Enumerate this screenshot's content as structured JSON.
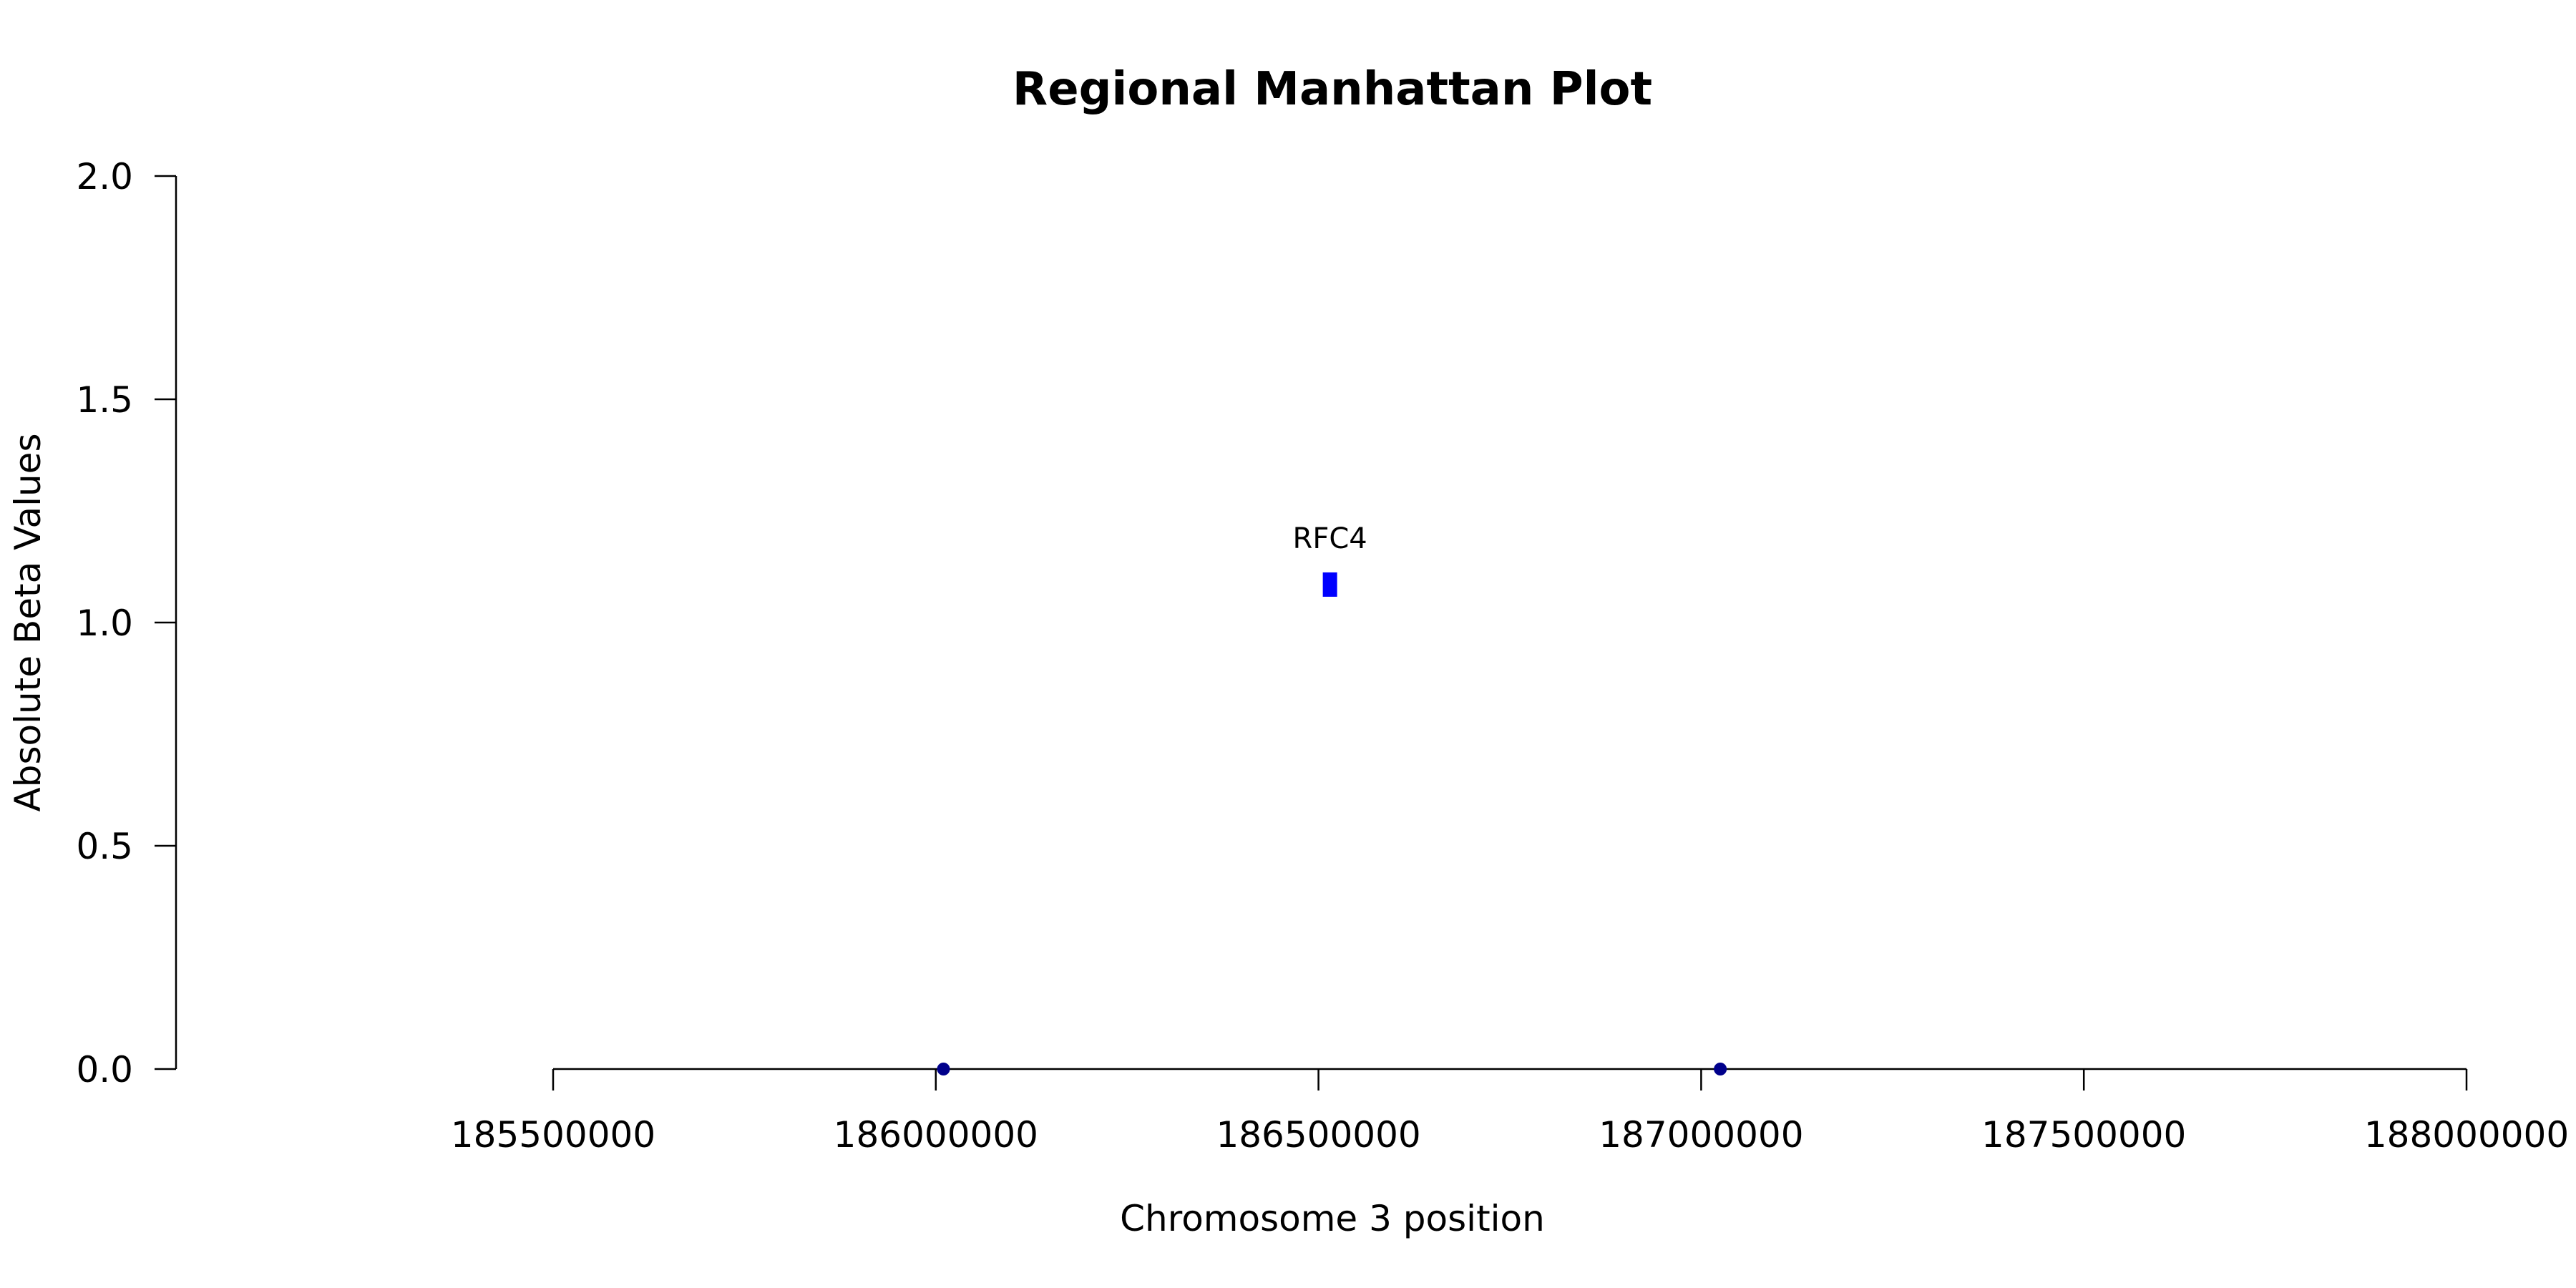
{
  "chart_data": {
    "type": "scatter",
    "title": "Regional Manhattan Plot",
    "xlabel": "Chromosome 3 position",
    "ylabel": "Absolute Beta Values",
    "xlim": [
      185500000,
      188000000
    ],
    "ylim": [
      0,
      2
    ],
    "xticks": [
      185500000,
      186000000,
      186500000,
      187000000,
      187500000,
      188000000
    ],
    "yticks": [
      0,
      0.5,
      1,
      1.5,
      2
    ],
    "ytick_labels": [
      "0.0",
      "0.5",
      "1.0",
      "1.5",
      "2.0"
    ],
    "points": [
      {
        "x": 186010000,
        "y": 0,
        "color": "#00008B",
        "shape": "circle"
      },
      {
        "x": 187025000,
        "y": 0,
        "color": "#00008B",
        "shape": "circle"
      }
    ],
    "gene_markers": [
      {
        "gene": "RFC4",
        "x": 186515000,
        "y": 1.085,
        "color": "#0000FF",
        "shape": "rect"
      }
    ],
    "grid": false,
    "legend": "none"
  }
}
